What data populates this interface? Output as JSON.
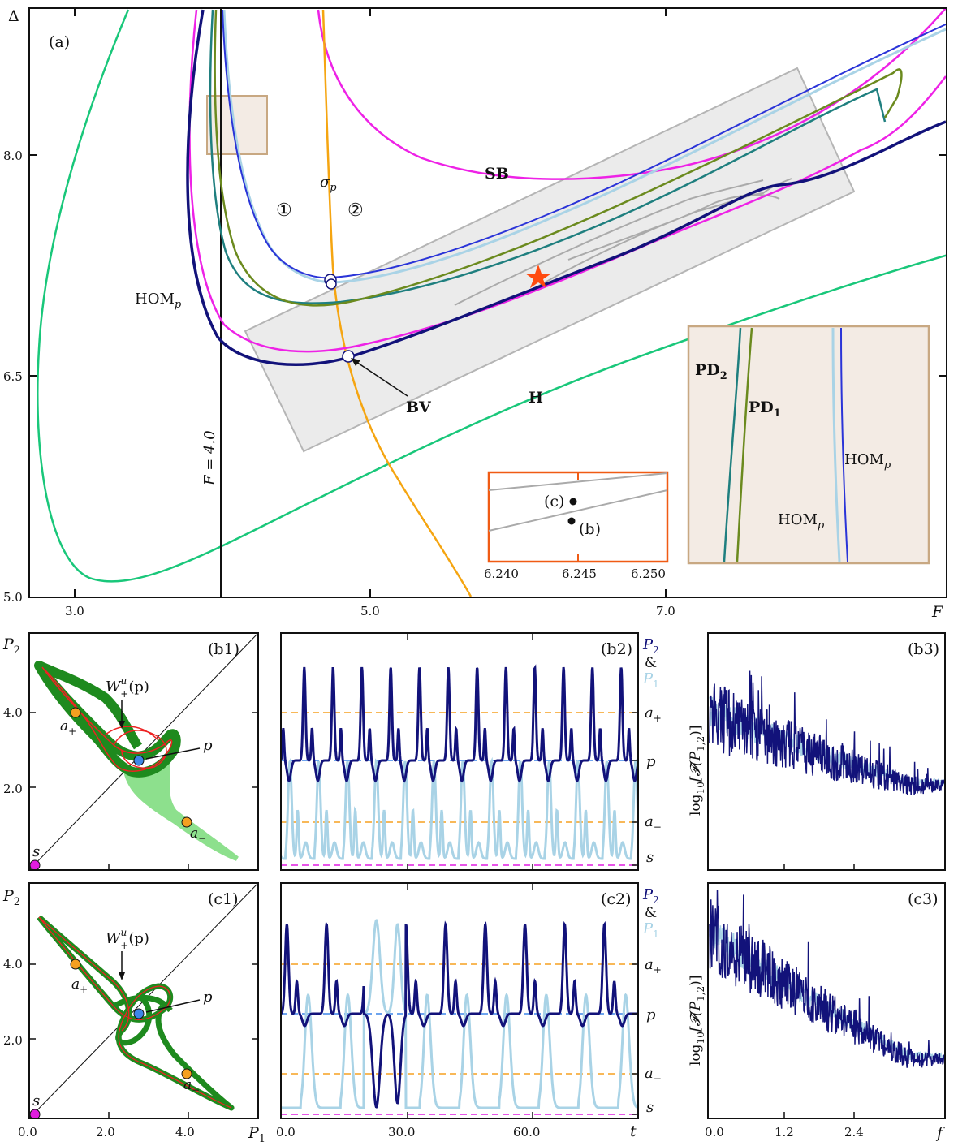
{
  "colors": {
    "hom_dark": "#12127a",
    "hom_blue": "#2a34d8",
    "hom_light": "#a9d3e6",
    "pd1": "#6b8a1e",
    "pd2": "#1f7f7f",
    "sb": "#ee22e6",
    "hopf": "#19c77a",
    "sigma": "#f5a511",
    "grey_box": "#e8e8e8",
    "inset_tan": "#f3ebe4",
    "inset_tan_edge": "#c8a882",
    "orange_box": "#f05b14",
    "star": "#ff4a0f",
    "orbit_green": "#1e8a1e",
    "orbit_red": "#ee2222",
    "orbit_lightgreen": "#8de08d",
    "point_orange": "#f5a020",
    "point_blue": "#3d86e8",
    "point_magenta": "#e11de0"
  },
  "panel_a": {
    "label": "(a)",
    "xlabel": "F",
    "ylabel": "Δ",
    "xticks": [
      "3.0",
      "5.0",
      "7.0"
    ],
    "yticks": [
      "5.0",
      "6.5",
      "8.0"
    ],
    "curves": {
      "sb": "SB",
      "hopf": "H",
      "hom": "HOM",
      "hom_sub": "p",
      "sigma": "σ",
      "sigma_sub": "p",
      "bv": "BV",
      "fline": "F = 4.0"
    },
    "regions": [
      "①",
      "②"
    ],
    "inset_c": {
      "xticks": [
        "6.240",
        "6.245",
        "6.250"
      ],
      "c_label": "(c)",
      "b_label": "(b)"
    },
    "inset_tan": {
      "pd2": "PD",
      "pd2_sub": "2",
      "pd1": "PD",
      "pd1_sub": "1",
      "hom_a": "HOM",
      "hom_a_sub": "p",
      "hom_b": "HOM",
      "hom_b_sub": "p"
    }
  },
  "panel_b1": {
    "label": "(b1)",
    "xlabel": "P",
    "xlabel_sub": "1",
    "ylabel": "P",
    "ylabel_sub": "2",
    "yticks": [
      "2.0",
      "4.0"
    ],
    "wlabel": "W",
    "wsup": "u",
    "wsub": "+",
    "wtail": "(p)",
    "points": {
      "p": "p",
      "s": "s",
      "a_plus": "a",
      "a_plus_sub": "+",
      "a_minus": "a",
      "a_minus_sub": "−"
    }
  },
  "panel_b2": {
    "label": "(b2)",
    "legend_p2": "P",
    "legend_p2_sub": "2",
    "legend_amp": "&",
    "legend_p1": "P",
    "legend_p1_sub": "1",
    "levels": {
      "a_plus": "a",
      "a_plus_sub": "+",
      "p": "p",
      "a_minus": "a",
      "a_minus_sub": "−",
      "s": "s"
    }
  },
  "panel_b3": {
    "label": "(b3)",
    "ylabel": "log",
    "ylabel_sub": "10",
    "ylabel_tail": "[𝓕(P",
    "ylabel_sub2": "1,2",
    "ylabel_end": ")]"
  },
  "panel_c1": {
    "label": "(c1)",
    "xlabel": "P",
    "xlabel_sub": "1",
    "ylabel": "P",
    "ylabel_sub": "2",
    "xticks": [
      "0.0",
      "2.0",
      "4.0"
    ],
    "yticks": [
      "2.0",
      "4.0"
    ],
    "wlabel": "W",
    "wsup": "u",
    "wsub": "+",
    "wtail": "(p)",
    "points": {
      "p": "p",
      "s": "s",
      "a_plus": "a",
      "a_plus_sub": "+",
      "a_minus": "a",
      "a_minus_sub": "−"
    }
  },
  "panel_c2": {
    "label": "(c2)",
    "xlabel": "t",
    "xticks": [
      "0.0",
      "30.0",
      "60.0"
    ],
    "legend_p2": "P",
    "legend_p2_sub": "2",
    "legend_amp": "&",
    "legend_p1": "P",
    "legend_p1_sub": "1",
    "levels": {
      "a_plus": "a",
      "a_plus_sub": "+",
      "p": "p",
      "a_minus": "a",
      "a_minus_sub": "−",
      "s": "s"
    }
  },
  "panel_c3": {
    "label": "(c3)",
    "xlabel": "f",
    "xticks": [
      "0.0",
      "1.2",
      "2.4"
    ],
    "ylabel": "log",
    "ylabel_sub": "10",
    "ylabel_tail": "[𝓕(P",
    "ylabel_sub2": "1,2",
    "ylabel_end": ")]"
  },
  "chart_data": [
    {
      "type": "line",
      "panel": "(a)",
      "xlabel": "F",
      "ylabel": "Δ",
      "xlim": [
        2.6,
        8.8
      ],
      "ylim": [
        5.0,
        9.0
      ],
      "series": [
        {
          "name": "H",
          "x": [
            3.1,
            2.6,
            2.9,
            3.5,
            4.2,
            5.0,
            6.0,
            7.0,
            8.0,
            8.8
          ],
          "y": [
            9.0,
            7.5,
            6.2,
            5.7,
            5.6,
            5.9,
            6.2,
            6.5,
            6.8,
            7.1
          ]
        },
        {
          "name": "SB",
          "x": [
            4.95,
            5.1,
            5.5,
            6.1,
            6.7,
            7.3,
            8.0,
            8.8
          ],
          "y": [
            9.0,
            8.5,
            8.15,
            7.9,
            7.9,
            8.1,
            8.5,
            9.0
          ]
        },
        {
          "name": "σp",
          "x": [
            4.8,
            4.85,
            4.9,
            4.95,
            5.1,
            5.5,
            6.0
          ],
          "y": [
            9.0,
            8.0,
            7.2,
            6.6,
            6.2,
            5.6,
            5.1
          ]
        },
        {
          "name": "F = 4.0",
          "x": [
            4.0,
            4.0
          ],
          "y": [
            5.0,
            9.0
          ]
        }
      ],
      "annotations": [
        "SB",
        "H",
        "BV",
        "σp",
        "HOMp",
        "①",
        "②",
        "F = 4.0"
      ]
    },
    {
      "type": "line",
      "panel": "(b2)",
      "xlabel": "t",
      "xlim": [
        0,
        80
      ],
      "series": [
        {
          "name": "P2",
          "description_values": "periodic with ~12 peaks at ≈5.2"
        },
        {
          "name": "P1",
          "description_values": "periodic with minima near s"
        }
      ]
    },
    {
      "type": "line",
      "panel": "(c2)",
      "xlabel": "t",
      "xticks": [
        0.0,
        30.0,
        60.0
      ],
      "xlim": [
        0,
        80
      ]
    },
    {
      "type": "line",
      "panel": "(c3)",
      "xlabel": "f",
      "xticks": [
        0.0,
        1.2,
        2.4
      ],
      "xlim": [
        -0.05,
        3.2
      ]
    }
  ]
}
